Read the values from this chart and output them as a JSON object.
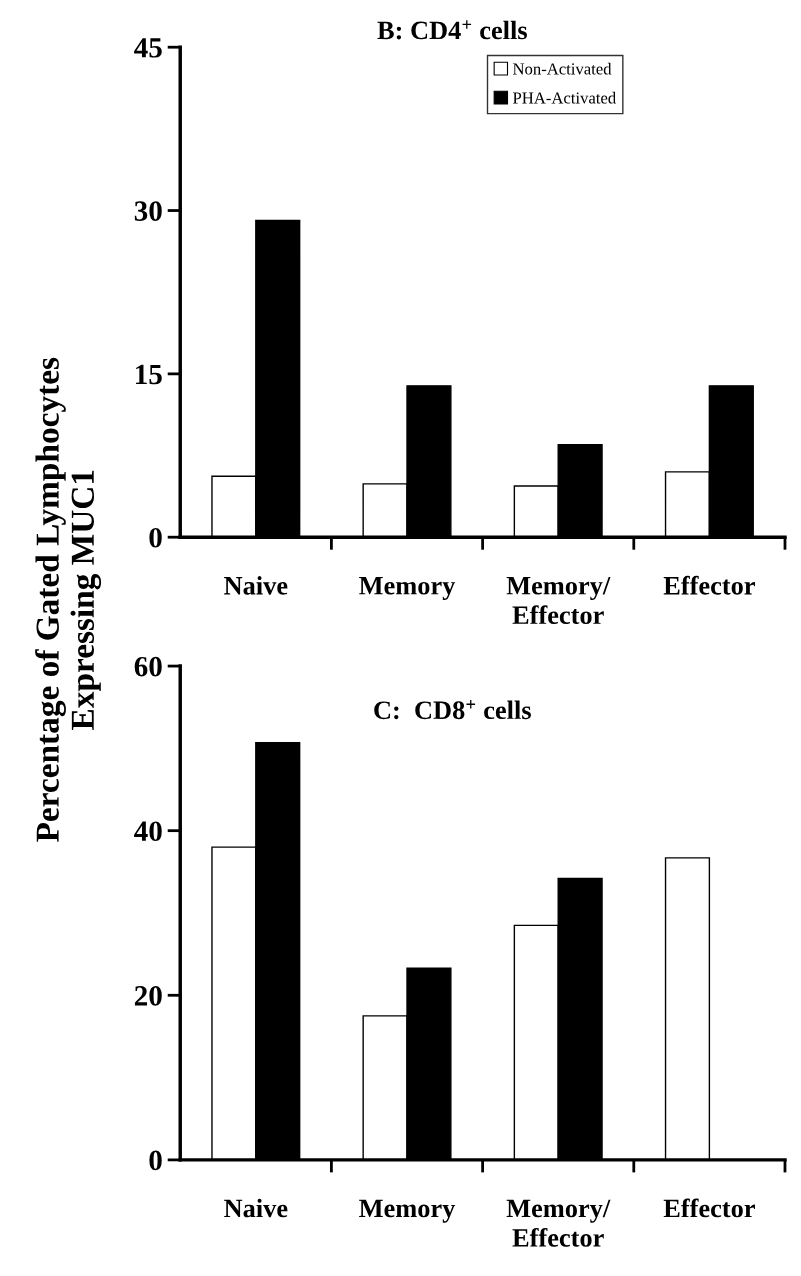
{
  "chart_data": [
    {
      "type": "bar",
      "title": "B: CD4$^{+}$ cells",
      "ylabel": "Percentage of Gated Lymphocytes\nExpressing MUC1",
      "categories": [
        "Naive",
        "Memory",
        "Memory/\nEffector",
        "Effector"
      ],
      "ylim": [
        0,
        45
      ],
      "yticks": [
        0,
        15,
        30,
        45
      ],
      "legend": "top",
      "grid": false,
      "series": [
        {
          "name": "Non-Activated",
          "color": "#ffffff",
          "values": [
            5.6,
            4.9,
            4.7,
            6.0
          ]
        },
        {
          "name": "PHA-Activated",
          "color": "#000000",
          "values": [
            29.1,
            13.9,
            8.5,
            13.9
          ]
        }
      ]
    },
    {
      "type": "bar",
      "title": "C:  CD8$^{+}$ cells",
      "categories": [
        "Naive",
        "Memory",
        "Memory/\nEffector",
        "Effector"
      ],
      "ylim": [
        0,
        60
      ],
      "yticks": [
        0,
        20,
        40,
        60
      ],
      "grid": false,
      "series": [
        {
          "color": "#ffffff",
          "values": [
            38.0,
            17.5,
            28.5,
            36.7
          ]
        },
        {
          "color": "#000000",
          "values": [
            50.7,
            23.3,
            34.2,
            null
          ]
        }
      ]
    }
  ]
}
